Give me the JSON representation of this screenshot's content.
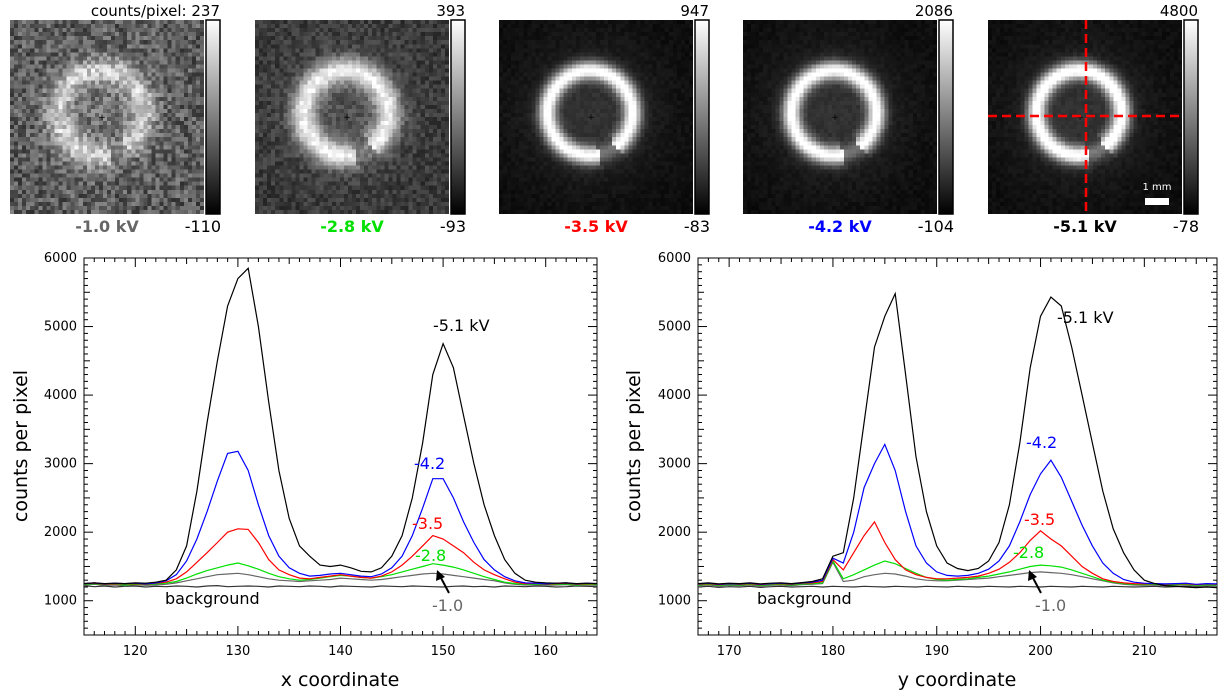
{
  "colors": {
    "v1": "#666666",
    "v2": "#00e000",
    "v3": "#ff0000",
    "v4": "#0000ff",
    "v5": "#000000",
    "background": "#333333",
    "crosshair": "#ff0000"
  },
  "panels": [
    {
      "kv_label": "-1.0 kV",
      "color_key": "v1",
      "cmax": "237",
      "cmax_prefix": "counts/pixel: ",
      "cmin": "-110",
      "ring": [
        0.62,
        0.1,
        0.55,
        0.3
      ]
    },
    {
      "kv_label": "-2.8 kV",
      "color_key": "v2",
      "cmax": "393",
      "cmax_prefix": "",
      "cmin": "-93",
      "ring": [
        0.85,
        0.08,
        0.0,
        0.0
      ]
    },
    {
      "kv_label": "-3.5 kV",
      "color_key": "v3",
      "cmax": "947",
      "cmax_prefix": "",
      "cmin": "-83",
      "ring": [
        0.95,
        0.05,
        0.0,
        0.0
      ]
    },
    {
      "kv_label": "-4.2 kV",
      "color_key": "v4",
      "cmax": "2086",
      "cmax_prefix": "",
      "cmin": "-104",
      "ring": [
        0.95,
        0.04,
        0.0,
        0.0
      ]
    },
    {
      "kv_label": "-5.1 kV",
      "color_key": "v5",
      "cmax": "4800",
      "cmax_prefix": "",
      "cmin": "-78",
      "ring": [
        1.0,
        0.04,
        0.0,
        0.0
      ],
      "scale_label": "1 mm",
      "crosshair": true
    }
  ],
  "chart_data": [
    {
      "type": "line",
      "xlabel": "x coordinate",
      "ylabel": "counts per pixel",
      "xlim": [
        115,
        165
      ],
      "ylim": [
        500,
        6000
      ],
      "xticks": [
        120,
        130,
        140,
        150,
        160
      ],
      "yticks": [
        1000,
        2000,
        3000,
        4000,
        5000,
        6000
      ],
      "x": [
        115,
        116,
        117,
        118,
        119,
        120,
        121,
        122,
        123,
        124,
        125,
        126,
        127,
        128,
        129,
        130,
        131,
        132,
        133,
        134,
        135,
        136,
        137,
        138,
        139,
        140,
        141,
        142,
        143,
        144,
        145,
        146,
        147,
        148,
        149,
        150,
        151,
        152,
        153,
        154,
        155,
        156,
        157,
        158,
        159,
        160,
        161,
        162,
        163,
        164,
        165
      ],
      "series": [
        {
          "name": "background",
          "color_key": "background",
          "values": [
            1220,
            1205,
            1215,
            1200,
            1210,
            1215,
            1200,
            1210,
            1205,
            1215,
            1210,
            1200,
            1215,
            1220,
            1205,
            1210,
            1215,
            1210,
            1200,
            1215,
            1210,
            1205,
            1215,
            1210,
            1200,
            1215,
            1210,
            1205,
            1200,
            1215,
            1210,
            1205,
            1215,
            1210,
            1205,
            1200,
            1210,
            1215,
            1205,
            1210,
            1200,
            1215,
            1210,
            1205,
            1215,
            1210,
            1200,
            1205,
            1215,
            1210,
            1205
          ]
        },
        {
          "name": "-1.0",
          "color_key": "v1",
          "values": [
            1230,
            1240,
            1225,
            1230,
            1220,
            1235,
            1225,
            1230,
            1240,
            1260,
            1290,
            1320,
            1350,
            1380,
            1390,
            1400,
            1380,
            1350,
            1320,
            1300,
            1290,
            1280,
            1290,
            1300,
            1310,
            1330,
            1320,
            1310,
            1300,
            1310,
            1330,
            1350,
            1370,
            1390,
            1400,
            1390,
            1370,
            1350,
            1330,
            1310,
            1290,
            1260,
            1240,
            1230,
            1235,
            1225,
            1230,
            1235,
            1220,
            1230,
            1225
          ]
        },
        {
          "name": "-2.8",
          "color_key": "v2",
          "values": [
            1240,
            1250,
            1235,
            1245,
            1230,
            1240,
            1235,
            1245,
            1255,
            1280,
            1330,
            1390,
            1440,
            1480,
            1520,
            1550,
            1510,
            1460,
            1400,
            1350,
            1320,
            1300,
            1310,
            1330,
            1350,
            1370,
            1360,
            1340,
            1330,
            1350,
            1380,
            1420,
            1460,
            1500,
            1540,
            1520,
            1490,
            1450,
            1400,
            1350,
            1310,
            1270,
            1250,
            1240,
            1245,
            1235,
            1240,
            1245,
            1230,
            1240,
            1235
          ]
        },
        {
          "name": "-3.5",
          "color_key": "v3",
          "values": [
            1250,
            1255,
            1240,
            1250,
            1245,
            1250,
            1240,
            1255,
            1270,
            1320,
            1420,
            1560,
            1700,
            1850,
            2000,
            2050,
            2040,
            1850,
            1600,
            1450,
            1380,
            1330,
            1320,
            1340,
            1360,
            1380,
            1360,
            1340,
            1330,
            1360,
            1420,
            1520,
            1650,
            1800,
            1950,
            1900,
            1800,
            1700,
            1560,
            1450,
            1380,
            1320,
            1270,
            1250,
            1255,
            1240,
            1250,
            1255,
            1240,
            1250,
            1245
          ]
        },
        {
          "name": "-4.2",
          "color_key": "v4",
          "values": [
            1250,
            1260,
            1245,
            1255,
            1250,
            1255,
            1245,
            1260,
            1290,
            1380,
            1580,
            1900,
            2300,
            2750,
            3150,
            3180,
            2900,
            2400,
            1950,
            1650,
            1480,
            1400,
            1360,
            1370,
            1390,
            1400,
            1380,
            1360,
            1350,
            1390,
            1480,
            1650,
            1950,
            2350,
            2780,
            2780,
            2500,
            2150,
            1850,
            1600,
            1450,
            1350,
            1290,
            1260,
            1255,
            1245,
            1255,
            1260,
            1245,
            1255,
            1250
          ]
        },
        {
          "name": "-5.1",
          "color_key": "v5",
          "values": [
            1250,
            1260,
            1250,
            1255,
            1250,
            1260,
            1255,
            1270,
            1300,
            1450,
            1800,
            2600,
            3600,
            4500,
            5300,
            5700,
            5850,
            5000,
            3900,
            2900,
            2200,
            1800,
            1650,
            1520,
            1500,
            1520,
            1480,
            1430,
            1420,
            1480,
            1650,
            1950,
            2500,
            3300,
            4300,
            4750,
            4400,
            3700,
            3000,
            2400,
            1950,
            1600,
            1400,
            1300,
            1270,
            1260,
            1255,
            1260,
            1250,
            1255,
            1250
          ]
        }
      ],
      "annotations": [
        {
          "text": "-5.1 kV",
          "color_key": "v5"
        },
        {
          "text": "-4.2",
          "color_key": "v4"
        },
        {
          "text": "-3.5",
          "color_key": "v3"
        },
        {
          "text": "-2.8",
          "color_key": "v2"
        },
        {
          "text": "-1.0",
          "color_key": "v1"
        },
        {
          "text": "background",
          "color_key": "v5"
        }
      ]
    },
    {
      "type": "line",
      "xlabel": "y coordinate",
      "ylabel": "counts per pixel",
      "xlim": [
        167,
        217
      ],
      "ylim": [
        500,
        6000
      ],
      "xticks": [
        170,
        180,
        190,
        200,
        210
      ],
      "yticks": [
        1000,
        2000,
        3000,
        4000,
        5000,
        6000
      ],
      "x": [
        167,
        168,
        169,
        170,
        171,
        172,
        173,
        174,
        175,
        176,
        177,
        178,
        179,
        180,
        181,
        182,
        183,
        184,
        185,
        186,
        187,
        188,
        189,
        190,
        191,
        192,
        193,
        194,
        195,
        196,
        197,
        198,
        199,
        200,
        201,
        202,
        203,
        204,
        205,
        206,
        207,
        208,
        209,
        210,
        211,
        212,
        213,
        214,
        215,
        216,
        217
      ],
      "series": [
        {
          "name": "background",
          "color_key": "background",
          "values": [
            1200,
            1210,
            1195,
            1205,
            1200,
            1210,
            1195,
            1205,
            1210,
            1200,
            1205,
            1210,
            1200,
            1210,
            1205,
            1200,
            1210,
            1205,
            1200,
            1210,
            1205,
            1200,
            1210,
            1205,
            1200,
            1210,
            1205,
            1200,
            1210,
            1205,
            1200,
            1210,
            1205,
            1200,
            1210,
            1205,
            1200,
            1210,
            1205,
            1200,
            1210,
            1205,
            1200,
            1205,
            1210,
            1200,
            1205,
            1210,
            1200,
            1205,
            1200
          ]
        },
        {
          "name": "-1.0",
          "color_key": "v1",
          "values": [
            1220,
            1230,
            1215,
            1225,
            1220,
            1230,
            1215,
            1225,
            1230,
            1220,
            1235,
            1240,
            1250,
            1560,
            1280,
            1300,
            1350,
            1380,
            1400,
            1390,
            1360,
            1320,
            1300,
            1290,
            1290,
            1300,
            1310,
            1320,
            1330,
            1350,
            1370,
            1390,
            1410,
            1420,
            1410,
            1400,
            1380,
            1350,
            1320,
            1290,
            1260,
            1240,
            1230,
            1225,
            1230,
            1220,
            1225,
            1230,
            1215,
            1225,
            1220
          ]
        },
        {
          "name": "-2.8",
          "color_key": "v2",
          "values": [
            1230,
            1240,
            1225,
            1235,
            1230,
            1240,
            1225,
            1235,
            1240,
            1230,
            1245,
            1250,
            1260,
            1580,
            1320,
            1380,
            1450,
            1520,
            1580,
            1540,
            1470,
            1400,
            1340,
            1310,
            1300,
            1310,
            1320,
            1340,
            1360,
            1390,
            1420,
            1460,
            1500,
            1520,
            1510,
            1490,
            1450,
            1400,
            1350,
            1300,
            1270,
            1250,
            1240,
            1235,
            1240,
            1230,
            1235,
            1240,
            1225,
            1235,
            1230
          ]
        },
        {
          "name": "-3.5",
          "color_key": "v3",
          "values": [
            1240,
            1250,
            1235,
            1245,
            1240,
            1250,
            1235,
            1245,
            1250,
            1240,
            1255,
            1260,
            1280,
            1600,
            1450,
            1700,
            1950,
            2150,
            1850,
            1600,
            1450,
            1380,
            1340,
            1320,
            1320,
            1330,
            1340,
            1360,
            1400,
            1460,
            1560,
            1700,
            1880,
            2020,
            1900,
            1800,
            1650,
            1500,
            1400,
            1320,
            1280,
            1260,
            1250,
            1245,
            1250,
            1240,
            1245,
            1250,
            1235,
            1245,
            1240
          ]
        },
        {
          "name": "-4.2",
          "color_key": "v4",
          "values": [
            1245,
            1255,
            1240,
            1250,
            1245,
            1255,
            1240,
            1250,
            1255,
            1245,
            1260,
            1270,
            1300,
            1620,
            1550,
            2000,
            2650,
            3000,
            3280,
            2900,
            2300,
            1800,
            1550,
            1420,
            1370,
            1360,
            1370,
            1400,
            1460,
            1580,
            1800,
            2150,
            2550,
            2850,
            3050,
            2800,
            2450,
            2100,
            1800,
            1550,
            1400,
            1310,
            1270,
            1255,
            1250,
            1245,
            1250,
            1255,
            1240,
            1250,
            1245
          ]
        },
        {
          "name": "-5.1",
          "color_key": "v5",
          "values": [
            1250,
            1260,
            1245,
            1255,
            1250,
            1260,
            1245,
            1255,
            1260,
            1250,
            1265,
            1280,
            1320,
            1650,
            1700,
            2500,
            3600,
            4700,
            5150,
            5480,
            4300,
            3100,
            2300,
            1800,
            1550,
            1470,
            1440,
            1470,
            1580,
            1850,
            2400,
            3300,
            4400,
            5150,
            5430,
            5300,
            4700,
            4000,
            3300,
            2600,
            2050,
            1700,
            1450,
            1300,
            1250,
            1220,
            1210,
            1200,
            1190,
            1200,
            1190
          ]
        }
      ],
      "annotations": [
        {
          "text": "-5.1 kV",
          "color_key": "v5"
        },
        {
          "text": "-4.2",
          "color_key": "v4"
        },
        {
          "text": "-3.5",
          "color_key": "v3"
        },
        {
          "text": "-2.8",
          "color_key": "v2"
        },
        {
          "text": "-1.0",
          "color_key": "v1"
        },
        {
          "text": "background",
          "color_key": "v5"
        }
      ]
    }
  ]
}
